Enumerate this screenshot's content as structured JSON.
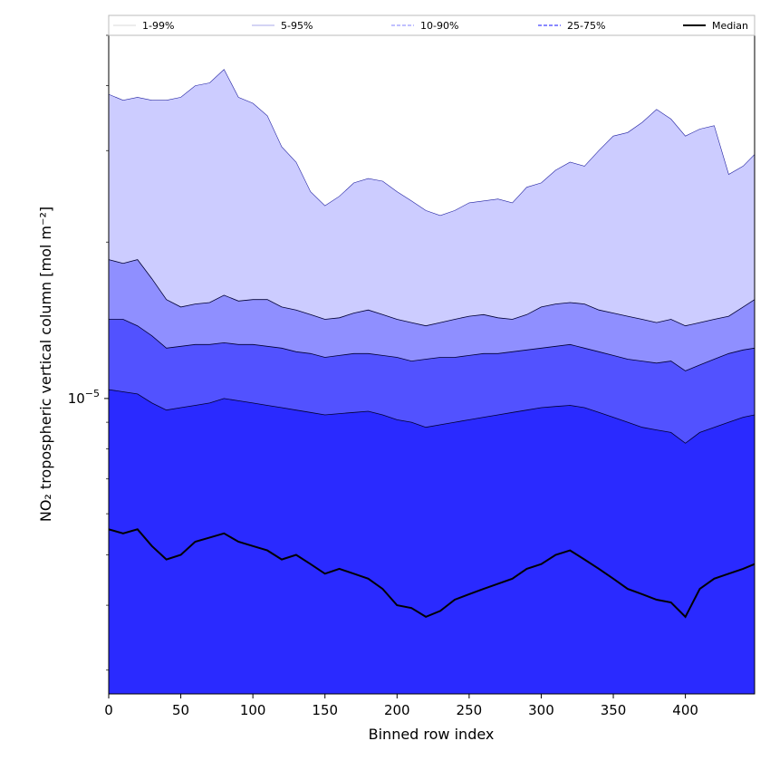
{
  "chart_data": {
    "type": "area",
    "title": "",
    "xlabel": "Binned row index",
    "ylabel": "NO₂ tropospheric vertical column [mol m⁻²]",
    "xlim": [
      0,
      448
    ],
    "ylim": [
      2.7e-06,
      5e-05
    ],
    "yscale": "log",
    "x_ticks": [
      0,
      50,
      100,
      150,
      200,
      250,
      300,
      350,
      400
    ],
    "x_tick_labels": [
      "0",
      "50",
      "100",
      "150",
      "200",
      "250",
      "300",
      "350",
      "400"
    ],
    "y_tick_labels": [
      {
        "base": "10",
        "exp": "−5",
        "value": 1e-05
      }
    ],
    "legend": {
      "placement": "top",
      "entries": [
        "1-99%",
        "5-95%",
        "10-90%",
        "25-75%",
        "Median"
      ]
    },
    "x": [
      0,
      10,
      20,
      30,
      40,
      50,
      60,
      70,
      80,
      90,
      100,
      110,
      120,
      130,
      140,
      150,
      160,
      170,
      180,
      190,
      200,
      210,
      220,
      230,
      240,
      250,
      260,
      270,
      280,
      290,
      300,
      310,
      320,
      330,
      340,
      350,
      360,
      370,
      380,
      390,
      400,
      410,
      420,
      430,
      440,
      448
    ],
    "series": [
      {
        "name": "1-99%",
        "color": "#ccccff",
        "upper": [
          3.85e-05,
          3.75e-05,
          3.8e-05,
          3.75e-05,
          3.75e-05,
          3.8e-05,
          4e-05,
          4.05e-05,
          4.3e-05,
          3.8e-05,
          3.7e-05,
          3.5e-05,
          3.05e-05,
          2.85e-05,
          2.5e-05,
          2.35e-05,
          2.45e-05,
          2.6e-05,
          2.65e-05,
          2.62e-05,
          2.5e-05,
          2.4e-05,
          2.3e-05,
          2.25e-05,
          2.3e-05,
          2.38e-05,
          2.4e-05,
          2.42e-05,
          2.38e-05,
          2.55e-05,
          2.6e-05,
          2.75e-05,
          2.85e-05,
          2.8e-05,
          3e-05,
          3.2e-05,
          3.25e-05,
          3.4e-05,
          3.6e-05,
          3.45e-05,
          3.2e-05,
          3.3e-05,
          3.35e-05,
          2.7e-05,
          2.8e-05,
          2.95e-05
        ],
        "lower": [
          2.7e-06,
          2.7e-06,
          2.7e-06,
          2.7e-06,
          2.7e-06,
          2.7e-06,
          2.7e-06,
          2.7e-06,
          2.7e-06,
          2.7e-06,
          2.7e-06,
          2.7e-06,
          2.7e-06,
          2.7e-06,
          2.7e-06,
          2.7e-06,
          2.7e-06,
          2.7e-06,
          2.7e-06,
          2.7e-06,
          2.7e-06,
          2.7e-06,
          2.7e-06,
          2.7e-06,
          2.7e-06,
          2.7e-06,
          2.7e-06,
          2.7e-06,
          2.7e-06,
          2.7e-06,
          2.7e-06,
          2.7e-06,
          2.7e-06,
          2.7e-06,
          2.7e-06,
          2.7e-06,
          2.7e-06,
          2.7e-06,
          2.7e-06,
          2.7e-06,
          2.7e-06,
          2.7e-06,
          2.7e-06,
          2.7e-06,
          2.7e-06,
          2.7e-06
        ]
      },
      {
        "name": "5-95%",
        "color": "#8f8fff",
        "upper": [
          1.85e-05,
          1.82e-05,
          1.85e-05,
          1.7e-05,
          1.55e-05,
          1.5e-05,
          1.52e-05,
          1.53e-05,
          1.58e-05,
          1.54e-05,
          1.55e-05,
          1.55e-05,
          1.5e-05,
          1.48e-05,
          1.45e-05,
          1.42e-05,
          1.43e-05,
          1.46e-05,
          1.48e-05,
          1.45e-05,
          1.42e-05,
          1.4e-05,
          1.38e-05,
          1.4e-05,
          1.42e-05,
          1.44e-05,
          1.45e-05,
          1.43e-05,
          1.42e-05,
          1.45e-05,
          1.5e-05,
          1.52e-05,
          1.53e-05,
          1.52e-05,
          1.48e-05,
          1.46e-05,
          1.44e-05,
          1.42e-05,
          1.4e-05,
          1.42e-05,
          1.38e-05,
          1.4e-05,
          1.42e-05,
          1.44e-05,
          1.5e-05,
          1.55e-05
        ],
        "lower": [
          2.7e-06,
          2.7e-06,
          2.7e-06,
          2.7e-06,
          2.7e-06,
          2.7e-06,
          2.7e-06,
          2.7e-06,
          2.7e-06,
          2.7e-06,
          2.7e-06,
          2.7e-06,
          2.7e-06,
          2.7e-06,
          2.7e-06,
          2.7e-06,
          2.7e-06,
          2.7e-06,
          2.7e-06,
          2.7e-06,
          2.7e-06,
          2.7e-06,
          2.7e-06,
          2.7e-06,
          2.7e-06,
          2.7e-06,
          2.7e-06,
          2.7e-06,
          2.7e-06,
          2.7e-06,
          2.7e-06,
          2.7e-06,
          2.7e-06,
          2.7e-06,
          2.7e-06,
          2.7e-06,
          2.7e-06,
          2.7e-06,
          2.7e-06,
          2.7e-06,
          2.7e-06,
          2.7e-06,
          2.7e-06,
          2.7e-06,
          2.7e-06,
          2.7e-06
        ]
      },
      {
        "name": "10-90%",
        "color": "#5252ff",
        "upper": [
          1.42e-05,
          1.42e-05,
          1.38e-05,
          1.32e-05,
          1.25e-05,
          1.26e-05,
          1.27e-05,
          1.27e-05,
          1.28e-05,
          1.27e-05,
          1.27e-05,
          1.26e-05,
          1.25e-05,
          1.23e-05,
          1.22e-05,
          1.2e-05,
          1.21e-05,
          1.22e-05,
          1.22e-05,
          1.21e-05,
          1.2e-05,
          1.18e-05,
          1.19e-05,
          1.2e-05,
          1.2e-05,
          1.21e-05,
          1.22e-05,
          1.22e-05,
          1.23e-05,
          1.24e-05,
          1.25e-05,
          1.26e-05,
          1.27e-05,
          1.25e-05,
          1.23e-05,
          1.21e-05,
          1.19e-05,
          1.18e-05,
          1.17e-05,
          1.18e-05,
          1.13e-05,
          1.16e-05,
          1.19e-05,
          1.22e-05,
          1.24e-05,
          1.25e-05
        ],
        "lower": [
          2.7e-06,
          2.7e-06,
          2.7e-06,
          2.7e-06,
          2.7e-06,
          2.7e-06,
          2.7e-06,
          2.7e-06,
          2.7e-06,
          2.7e-06,
          2.7e-06,
          2.7e-06,
          2.7e-06,
          2.7e-06,
          2.7e-06,
          2.7e-06,
          2.7e-06,
          2.7e-06,
          2.7e-06,
          2.7e-06,
          2.7e-06,
          2.7e-06,
          2.7e-06,
          2.7e-06,
          2.7e-06,
          2.7e-06,
          2.7e-06,
          2.7e-06,
          2.7e-06,
          2.7e-06,
          2.7e-06,
          2.7e-06,
          2.7e-06,
          2.7e-06,
          2.7e-06,
          2.7e-06,
          2.7e-06,
          2.7e-06,
          2.7e-06,
          2.7e-06,
          2.7e-06,
          2.7e-06,
          2.7e-06,
          2.7e-06,
          2.7e-06,
          2.7e-06
        ]
      },
      {
        "name": "25-75%",
        "color": "#2a2aff",
        "upper": [
          1.04e-05,
          1.03e-05,
          1.02e-05,
          9.8e-06,
          9.5e-06,
          9.6e-06,
          9.7e-06,
          9.8e-06,
          1e-05,
          9.9e-06,
          9.8e-06,
          9.7e-06,
          9.6e-06,
          9.5e-06,
          9.4e-06,
          9.3e-06,
          9.35e-06,
          9.4e-06,
          9.45e-06,
          9.3e-06,
          9.1e-06,
          9e-06,
          8.8e-06,
          8.9e-06,
          9e-06,
          9.1e-06,
          9.2e-06,
          9.3e-06,
          9.4e-06,
          9.5e-06,
          9.6e-06,
          9.65e-06,
          9.7e-06,
          9.6e-06,
          9.4e-06,
          9.2e-06,
          9e-06,
          8.8e-06,
          8.7e-06,
          8.6e-06,
          8.2e-06,
          8.6e-06,
          8.8e-06,
          9e-06,
          9.2e-06,
          9.3e-06
        ],
        "lower": [
          2.7e-06,
          2.7e-06,
          2.7e-06,
          2.7e-06,
          2.7e-06,
          2.7e-06,
          2.7e-06,
          2.7e-06,
          2.7e-06,
          2.7e-06,
          2.7e-06,
          2.7e-06,
          2.7e-06,
          2.7e-06,
          2.7e-06,
          2.7e-06,
          2.7e-06,
          2.7e-06,
          2.7e-06,
          2.7e-06,
          2.7e-06,
          2.7e-06,
          2.7e-06,
          2.7e-06,
          2.7e-06,
          2.7e-06,
          2.7e-06,
          2.7e-06,
          2.7e-06,
          2.7e-06,
          2.7e-06,
          2.7e-06,
          2.7e-06,
          2.7e-06,
          2.7e-06,
          2.7e-06,
          2.7e-06,
          2.7e-06,
          2.7e-06,
          2.7e-06,
          2.7e-06,
          2.7e-06,
          2.7e-06,
          2.7e-06,
          2.7e-06,
          2.7e-06
        ]
      },
      {
        "name": "Median",
        "color": "#000000",
        "values": [
          5.6e-06,
          5.5e-06,
          5.6e-06,
          5.2e-06,
          4.9e-06,
          5e-06,
          5.3e-06,
          5.4e-06,
          5.5e-06,
          5.3e-06,
          5.2e-06,
          5.1e-06,
          4.9e-06,
          5e-06,
          4.8e-06,
          4.6e-06,
          4.7e-06,
          4.6e-06,
          4.5e-06,
          4.3e-06,
          4e-06,
          3.95e-06,
          3.8e-06,
          3.9e-06,
          4.1e-06,
          4.2e-06,
          4.3e-06,
          4.4e-06,
          4.5e-06,
          4.7e-06,
          4.8e-06,
          5e-06,
          5.1e-06,
          4.9e-06,
          4.7e-06,
          4.5e-06,
          4.3e-06,
          4.2e-06,
          4.1e-06,
          4.05e-06,
          3.8e-06,
          4.3e-06,
          4.5e-06,
          4.6e-06,
          4.7e-06,
          4.8e-06
        ]
      }
    ]
  }
}
